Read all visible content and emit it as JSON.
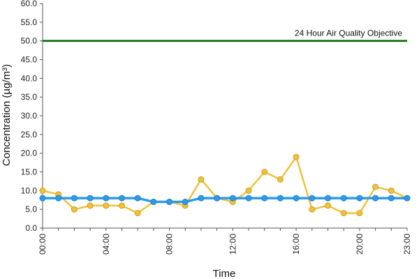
{
  "chart_data": {
    "type": "line",
    "xlabel": "Time",
    "ylabel": "Concentration (µg/m³)",
    "x": [
      0,
      1,
      2,
      3,
      4,
      5,
      6,
      7,
      8,
      9,
      10,
      11,
      12,
      13,
      14,
      15,
      16,
      17,
      18,
      19,
      20,
      21,
      22,
      23
    ],
    "x_tick_labels": [
      {
        "x": 0,
        "label": "00:00"
      },
      {
        "x": 4,
        "label": "04:00"
      },
      {
        "x": 8,
        "label": "08:00"
      },
      {
        "x": 12,
        "label": "12:00"
      },
      {
        "x": 16,
        "label": "16:00"
      },
      {
        "x": 20,
        "label": "20:00"
      },
      {
        "x": 23,
        "label": "23:00"
      }
    ],
    "ylim": [
      0,
      60
    ],
    "y_tick_step": 5,
    "y_tick_format": "0.0",
    "grid": false,
    "series": [
      {
        "color": "#F0C23A",
        "values": [
          10,
          9,
          5,
          6,
          6,
          6,
          4,
          7,
          7,
          6,
          13,
          8,
          7,
          10,
          15,
          13,
          19,
          5,
          6,
          4,
          4,
          11,
          10,
          8
        ]
      },
      {
        "color": "#2E9BE8",
        "values": [
          8,
          8,
          8,
          8,
          8,
          8,
          8,
          7,
          7,
          7,
          8,
          8,
          8,
          8,
          8,
          8,
          8,
          8,
          8,
          8,
          8,
          8,
          8,
          8
        ]
      }
    ],
    "reference_line": {
      "value": 50,
      "label": "24 Hour Air Quality Objective",
      "color": "#1E7A1E"
    }
  }
}
